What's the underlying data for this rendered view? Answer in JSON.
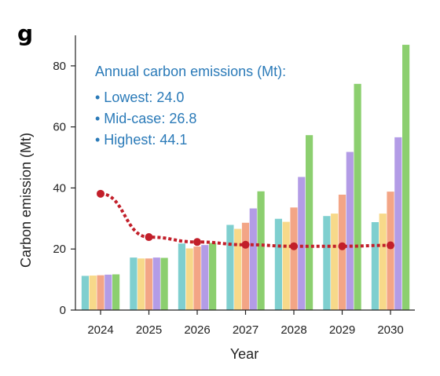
{
  "panel_label": "g",
  "colors": {
    "teal": "#7fcfcf",
    "yellow": "#f7d98a",
    "salmon": "#f3a586",
    "purple": "#b39ce6",
    "green": "#8ccf6f",
    "trend": "#c21f2a",
    "annotation": "#2a7ab8"
  },
  "annotation": {
    "title": "Annual carbon emissions (Mt):",
    "items": [
      "• Lowest: 24.0",
      "• Mid-case: 26.8",
      "• Highest: 44.1"
    ]
  },
  "chart_data": {
    "type": "bar",
    "title": "",
    "xlabel": "Year",
    "ylabel": "Carbon emission (Mt)",
    "categories": [
      "2024",
      "2025",
      "2026",
      "2027",
      "2028",
      "2029",
      "2030"
    ],
    "ylim": [
      0,
      90
    ],
    "yticks": [
      0,
      20,
      40,
      60,
      80
    ],
    "grid": false,
    "series": [
      {
        "color": "#7fcfcf",
        "values": [
          11.2,
          17.2,
          21.8,
          27.9,
          29.9,
          30.8,
          28.8
        ]
      },
      {
        "color": "#f7d98a",
        "values": [
          11.3,
          16.9,
          20.2,
          26.6,
          28.9,
          31.6,
          31.6
        ]
      },
      {
        "color": "#f3a586",
        "values": [
          11.4,
          16.9,
          20.8,
          28.6,
          33.6,
          37.8,
          38.8
        ]
      },
      {
        "color": "#b39ce6",
        "values": [
          11.6,
          17.2,
          21.3,
          33.3,
          43.6,
          51.8,
          56.6
        ]
      },
      {
        "color": "#8ccf6f",
        "values": [
          11.7,
          17.1,
          22.0,
          38.9,
          57.3,
          74.1,
          86.9
        ]
      }
    ],
    "trend_line": {
      "color": "#c21f2a",
      "style": "dotted",
      "values": [
        38.1,
        23.9,
        22.3,
        21.4,
        20.9,
        20.9,
        21.2
      ]
    }
  }
}
